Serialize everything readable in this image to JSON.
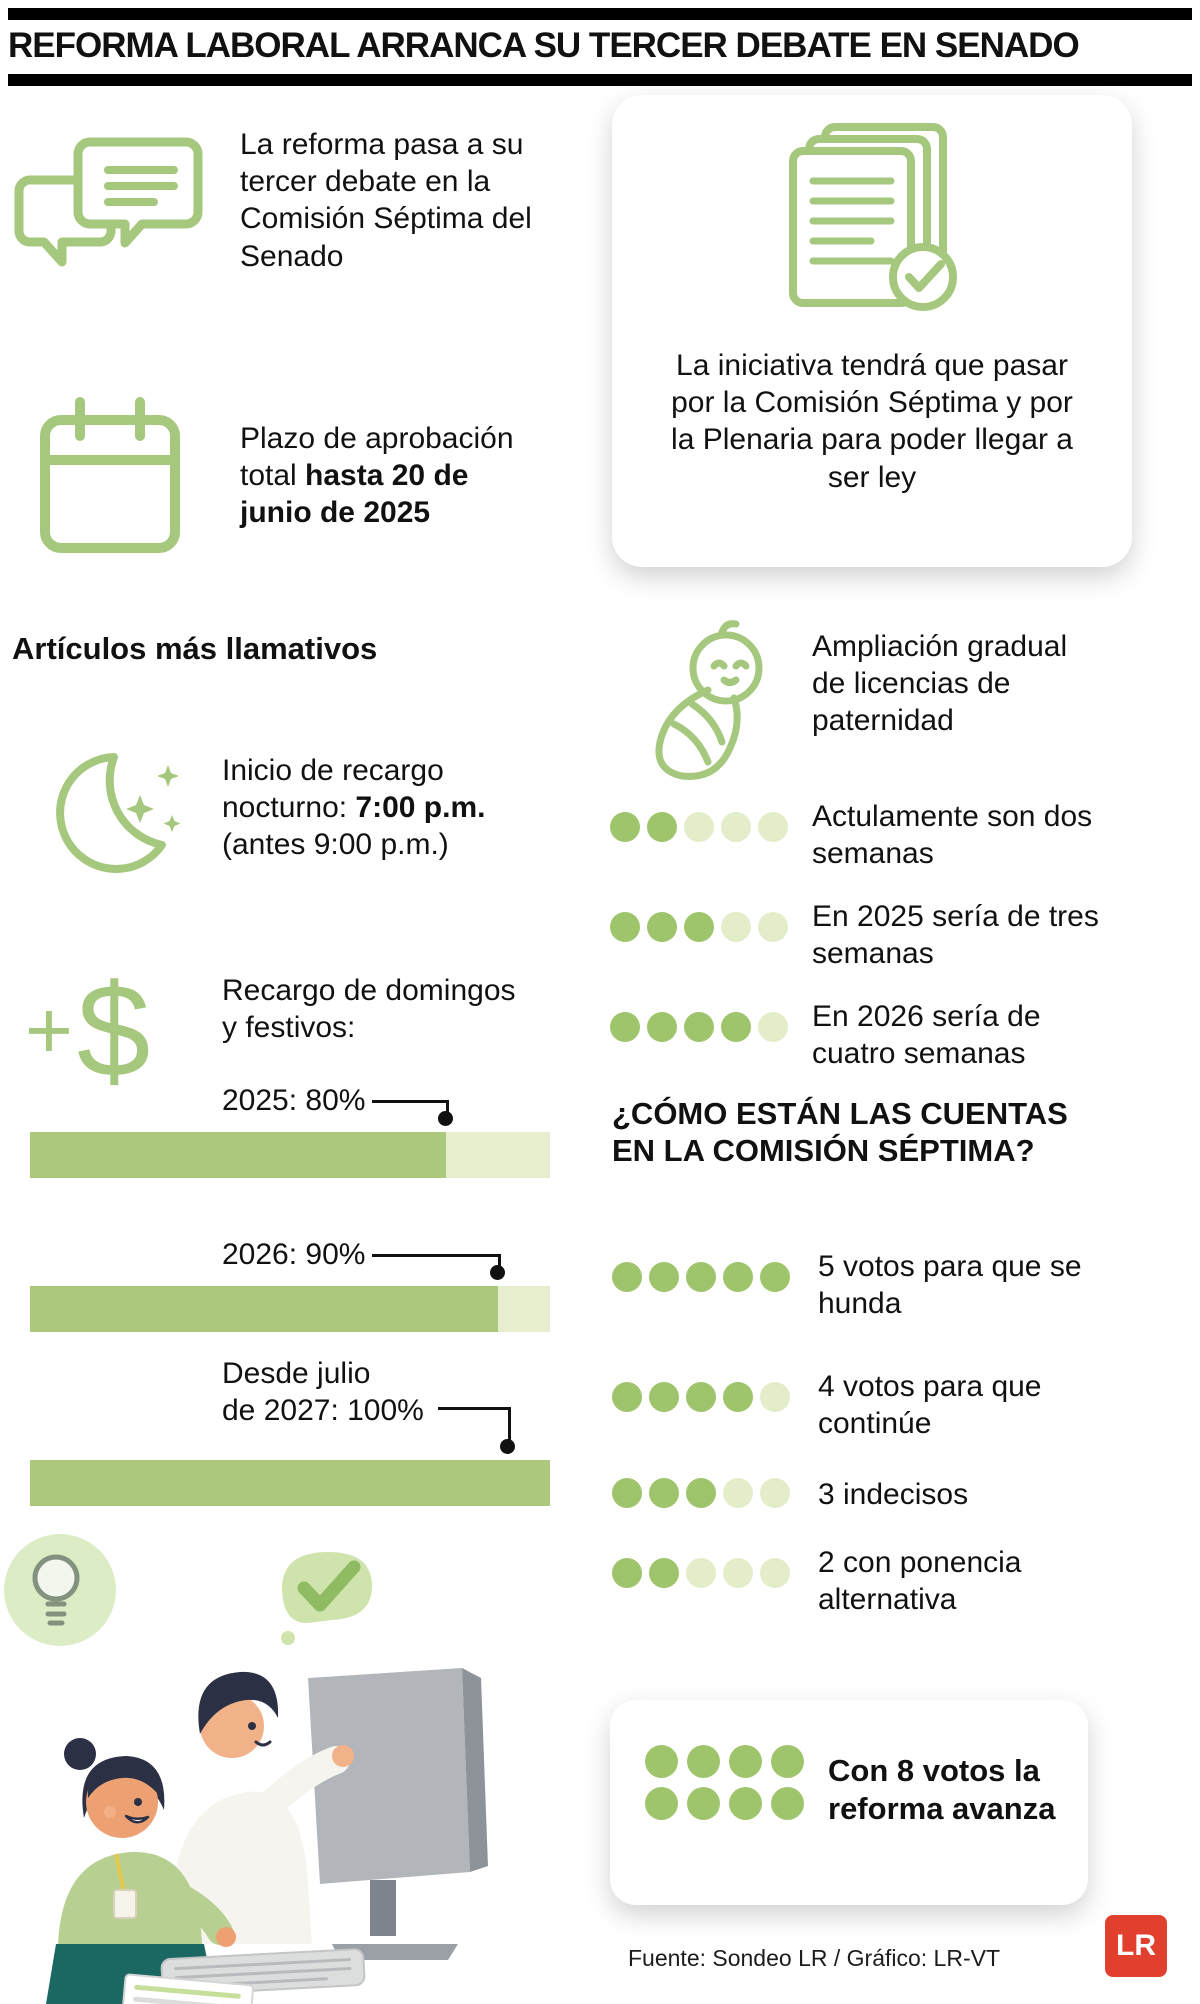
{
  "colors": {
    "icon_green": "#a6c87e",
    "bar_fill": "#abc87c",
    "bar_empty": "#e6eecd",
    "dot_fill": "#9fc56c",
    "dot_empty": "#e4edca",
    "ink": "#111111",
    "lr_red": "#e2402f"
  },
  "header": {
    "title": "REFORMA LABORAL ARRANCA SU TERCER DEBATE EN SENADO"
  },
  "intro": {
    "debate_text": "La reforma pasa a su tercer debate en la Comisión Séptima del Senado",
    "deadline_text_regular": "Plazo de aprobación total ",
    "deadline_text_bold": "hasta 20 de junio de 2025",
    "law_card_text": "La iniciativa tendrá que pasar por la Comisión Séptima y por la Plenaria para poder llegar a ser ley"
  },
  "articles": {
    "heading": "Artículos más llamativos",
    "night_regular": "Inicio de recargo nocturno: ",
    "night_bold": "7:00 p.m.",
    "night_after": " (antes 9:00 p.m.)",
    "plus_sign": "+",
    "dollar_sign": "$"
  },
  "chart_data": [
    {
      "type": "bar",
      "title": "Recargo de domingos y festivos:",
      "unit": "%",
      "ylim": [
        0,
        100
      ],
      "categories": [
        "2025",
        "2026",
        "Desde julio de 2027"
      ],
      "values": [
        80,
        90,
        100
      ],
      "items": [
        {
          "line1": "2025: 80%",
          "line2": "",
          "value": 80
        },
        {
          "line1": "2026: 90%",
          "line2": "",
          "value": 90
        },
        {
          "line1": "Desde julio",
          "line2": "de 2027: 100%",
          "value": 100
        }
      ]
    },
    {
      "type": "dots",
      "title": "Ampliación gradual de licencias de paternidad",
      "max": 5,
      "items": [
        {
          "label": "Actulamente son dos semanas",
          "value": 2
        },
        {
          "label": "En 2025 sería de tres semanas",
          "value": 3
        },
        {
          "label": "En 2026 sería de cuatro semanas",
          "value": 4
        }
      ]
    },
    {
      "type": "dots",
      "title": "¿CÓMO ESTÁN LAS CUENTAS EN LA COMISIÓN SÉPTIMA?",
      "max": 5,
      "items": [
        {
          "label": "5 votos para que se hunda",
          "value": 5
        },
        {
          "label": "4 votos para que continúe",
          "value": 4
        },
        {
          "label": "3 indecisos",
          "value": 3
        },
        {
          "label": "2 con ponencia alternativa",
          "value": 2
        }
      ]
    },
    {
      "type": "dots",
      "title": "Con 8 votos la reforma avanza",
      "max": 8,
      "items": [
        {
          "label": "Con 8 votos la reforma avanza",
          "value": 8
        }
      ]
    }
  ],
  "footer": {
    "source": "Fuente: Sondeo LR / Gráfico: LR-VT",
    "logo": "LR"
  }
}
